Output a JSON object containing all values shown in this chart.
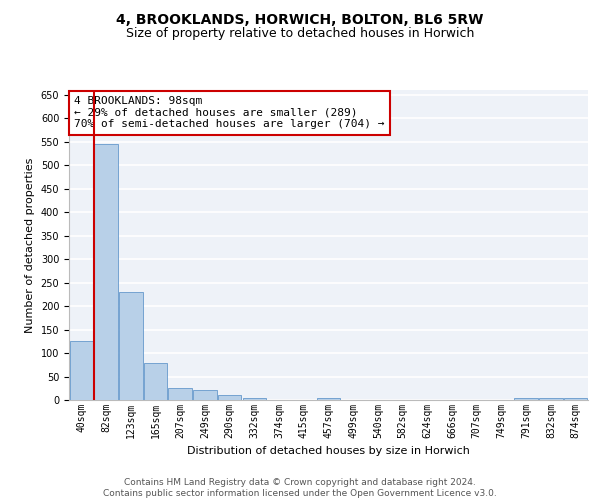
{
  "title": "4, BROOKLANDS, HORWICH, BOLTON, BL6 5RW",
  "subtitle": "Size of property relative to detached houses in Horwich",
  "xlabel": "Distribution of detached houses by size in Horwich",
  "ylabel": "Number of detached properties",
  "bin_labels": [
    "40sqm",
    "82sqm",
    "123sqm",
    "165sqm",
    "207sqm",
    "249sqm",
    "290sqm",
    "332sqm",
    "374sqm",
    "415sqm",
    "457sqm",
    "499sqm",
    "540sqm",
    "582sqm",
    "624sqm",
    "666sqm",
    "707sqm",
    "749sqm",
    "791sqm",
    "832sqm",
    "874sqm"
  ],
  "bar_heights": [
    125,
    545,
    230,
    78,
    25,
    22,
    10,
    5,
    0,
    0,
    5,
    0,
    0,
    0,
    0,
    0,
    0,
    0,
    5,
    5,
    5
  ],
  "bar_color": "#b8d0e8",
  "bar_edge_color": "#6699cc",
  "bar_width": 0.95,
  "red_line_x": 0.5,
  "red_line_color": "#cc0000",
  "annotation_text": "4 BROOKLANDS: 98sqm\n← 29% of detached houses are smaller (289)\n70% of semi-detached houses are larger (704) →",
  "annotation_box_color": "#ffffff",
  "annotation_box_edge": "#cc0000",
  "ylim": [
    0,
    660
  ],
  "yticks": [
    0,
    50,
    100,
    150,
    200,
    250,
    300,
    350,
    400,
    450,
    500,
    550,
    600,
    650
  ],
  "bg_color": "#eef2f8",
  "grid_color": "#ffffff",
  "footer_text": "Contains HM Land Registry data © Crown copyright and database right 2024.\nContains public sector information licensed under the Open Government Licence v3.0.",
  "title_fontsize": 10,
  "subtitle_fontsize": 9,
  "xlabel_fontsize": 8,
  "ylabel_fontsize": 8,
  "tick_fontsize": 7,
  "annotation_fontsize": 8,
  "footer_fontsize": 6.5
}
